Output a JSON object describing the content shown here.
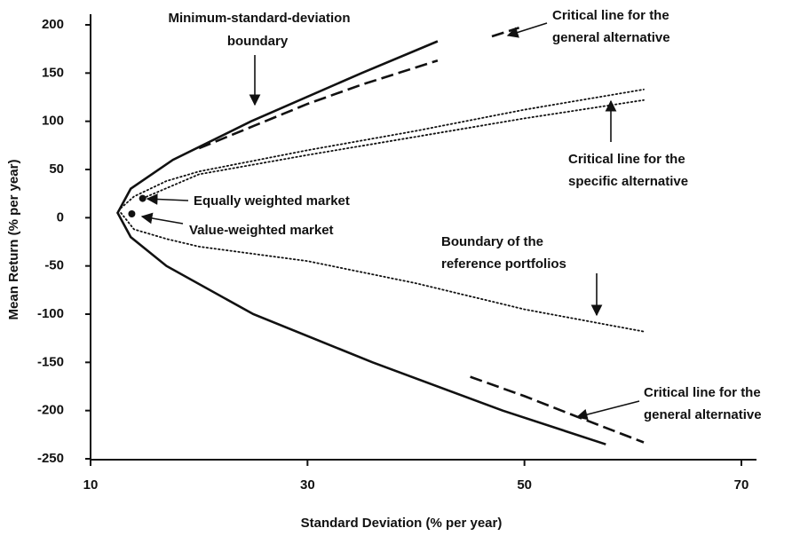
{
  "chart_data": {
    "type": "line",
    "x_label": "Standard Deviation (% per year)",
    "y_label": "Mean Return (% per year)",
    "xlim": [
      10,
      70
    ],
    "xticks": [
      10,
      30,
      50,
      70
    ],
    "ylim": [
      -250,
      200
    ],
    "yticks": [
      200,
      150,
      100,
      50,
      0,
      -50,
      -100,
      -150,
      -200,
      -250
    ],
    "series": [
      {
        "color": "#111111",
        "style": "solid",
        "x": [
          42,
          35,
          24.8,
          17.6,
          13.7,
          12.5,
          13.7,
          17,
          25,
          36,
          48,
          57.5
        ],
        "values": [
          183,
          150,
          100,
          60,
          30,
          5,
          -20,
          -50,
          -100,
          -150,
          -200,
          -235
        ]
      },
      {
        "color": "#111111",
        "style": "dashed",
        "x": [
          20,
          25,
          30,
          35,
          42,
          44.5,
          47,
          49.5
        ],
        "values": [
          72,
          95,
          118,
          138,
          163,
          null,
          188,
          197
        ]
      },
      {
        "color": "#111111",
        "style": "dashed",
        "x": [
          45,
          50,
          55,
          61
        ],
        "values": [
          -165,
          -185,
          -207,
          -233
        ]
      },
      {
        "color": "#111111",
        "style": "dotted",
        "x": [
          12.8,
          14,
          17,
          20,
          30,
          40,
          50,
          61
        ],
        "values": [
          10,
          22,
          38,
          48,
          70,
          90,
          112,
          133
        ]
      },
      {
        "color": "#111111",
        "style": "dotted",
        "x": [
          14.8,
          20,
          30,
          40,
          50,
          61
        ],
        "values": [
          20,
          45,
          65,
          84,
          103,
          122
        ]
      },
      {
        "color": "#111111",
        "style": "dotted",
        "x": [
          12.8,
          14,
          17,
          20,
          30,
          40,
          50,
          61
        ],
        "values": [
          5,
          -12,
          -22,
          -30,
          -45,
          -68,
          -95,
          -118
        ]
      },
      {
        "color": "#111111",
        "style": "points",
        "x": [
          14.8,
          13.8
        ],
        "values": [
          20,
          4
        ]
      }
    ],
    "annotations": [
      "Minimum-standard-deviation",
      "boundary",
      "Critical line for the",
      "general alternative",
      "Critical line for the",
      "specific alternative",
      "Equally weighted market",
      "Value-weighted market",
      "Boundary of the",
      "reference portfolios",
      "Critical line for the",
      "general alternative"
    ]
  }
}
